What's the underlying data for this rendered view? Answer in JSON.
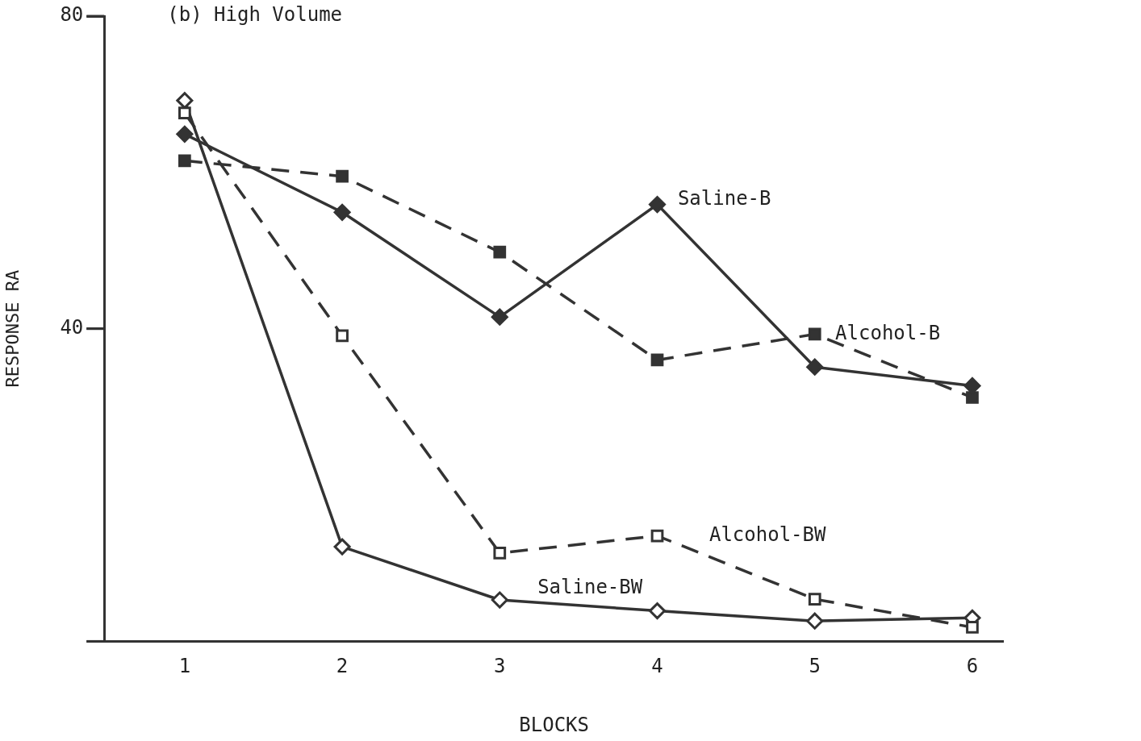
{
  "chart_data": {
    "type": "line",
    "title": "(b) High Volume",
    "xlabel": "BLOCKS",
    "ylabel": "RESPONSE RA",
    "x": [
      1,
      2,
      3,
      4,
      5,
      6
    ],
    "xlim": [
      0.49,
      6.2
    ],
    "xticks": [
      1,
      2,
      3,
      4,
      5,
      6
    ],
    "ylim": [
      0,
      80
    ],
    "yticks": [
      {
        "value": 0,
        "label": null
      },
      40,
      80
    ],
    "grid": false,
    "legend": false,
    "series": [
      {
        "name": "Saline-B",
        "color": "#333333",
        "marker": "diamond",
        "line_style": "solid",
        "values": [
          64.9,
          54.9,
          41.5,
          55.9,
          35.1,
          32.7
        ]
      },
      {
        "name": "Alcohol-B",
        "color": "#333333",
        "marker": "square",
        "line_style": "dashed",
        "values": [
          61.5,
          59.5,
          49.8,
          36.0,
          39.3,
          31.2
        ]
      },
      {
        "name": "Alcohol-BW",
        "color": "#333333",
        "colors": [
          "#ffffff",
          "#ffffff",
          "#ffffff",
          "#ffffff",
          "#ffffff",
          "#ffffff"
        ],
        "marker": "square",
        "line_style": "dashed",
        "values": [
          67.6,
          39.1,
          11.3,
          13.5,
          5.4,
          1.8
        ]
      },
      {
        "name": "Saline-BW",
        "color": "#333333",
        "colors": [
          "#ffffff",
          "#ffffff",
          "#ffffff",
          "#ffffff",
          "#ffffff",
          "#ffffff"
        ],
        "marker": "diamond",
        "line_style": "solid",
        "values": [
          69.2,
          12.1,
          5.3,
          3.9,
          2.6,
          3.0
        ]
      }
    ]
  }
}
